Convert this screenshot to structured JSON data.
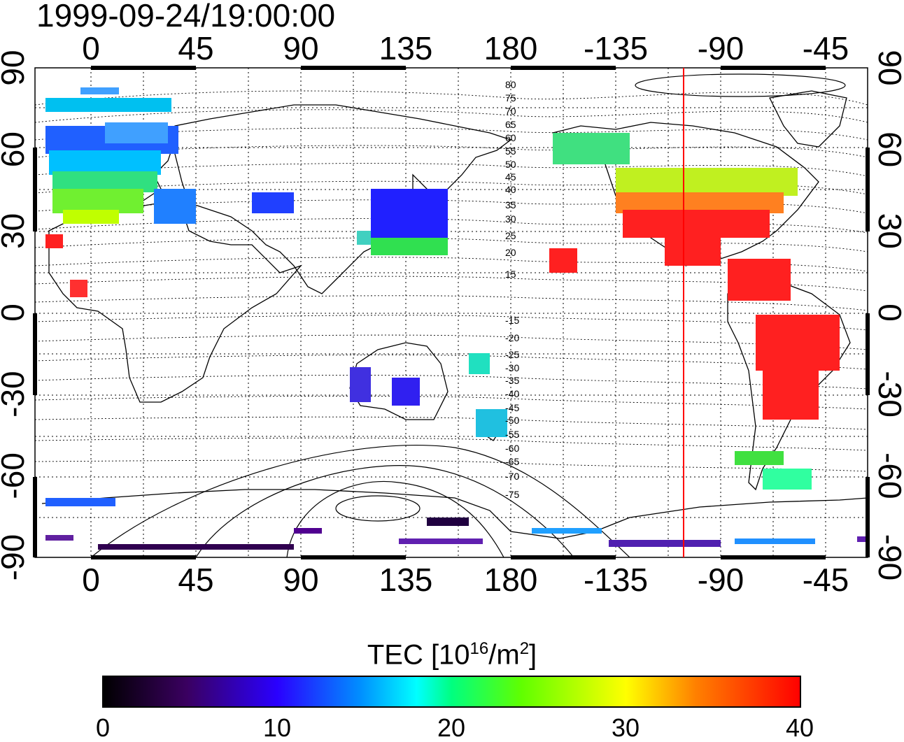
{
  "title": "1999-09-24/19:00:00",
  "x_axis": {
    "tick_labels": [
      "0",
      "45",
      "90",
      "135",
      "180",
      "-135",
      "-90",
      "-45"
    ]
  },
  "y_axis": {
    "tick_labels": [
      "90",
      "60",
      "30",
      "0",
      "-30",
      "-60",
      "-90"
    ],
    "range": [
      -90,
      90
    ]
  },
  "contour_labels": [
    "80",
    "75",
    "70",
    "65",
    "60",
    "55",
    "50",
    "45",
    "40",
    "35",
    "30",
    "25",
    "20",
    "15",
    "-15",
    "-20",
    "-25",
    "-30",
    "-35",
    "-40",
    "-45",
    "-50",
    "-55",
    "-60",
    "-65",
    "-70",
    "-75"
  ],
  "terminator_longitude": -105,
  "colorbar": {
    "title_main": "TEC  [10",
    "title_exp1": "16",
    "title_mid": "/m",
    "title_exp2": "2",
    "title_end": "]",
    "tick_labels": [
      "0",
      "10",
      "20",
      "30",
      "40"
    ],
    "range": [
      0,
      40
    ]
  },
  "colors": {
    "terminator": "#ff0000",
    "frame": "#000000"
  }
}
